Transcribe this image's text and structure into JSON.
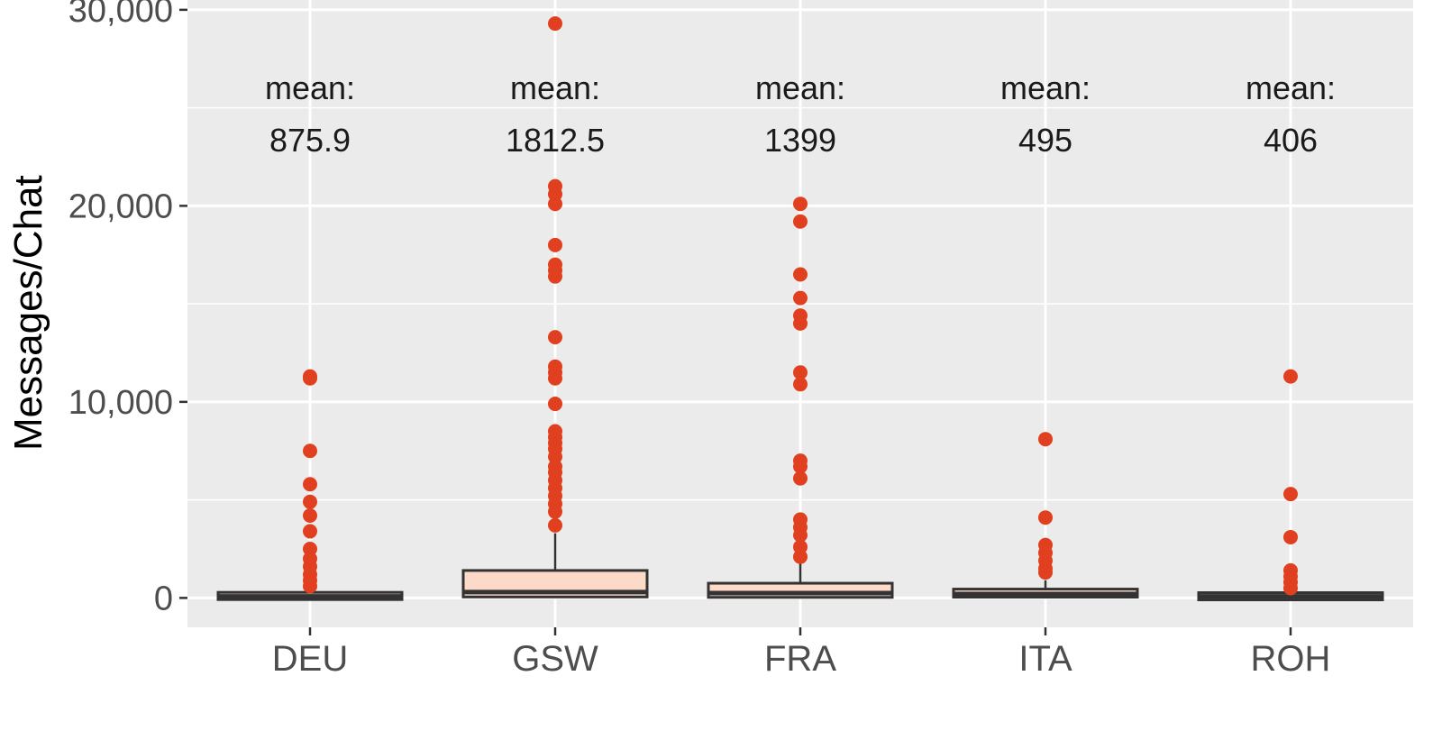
{
  "chart_data": {
    "type": "boxplot",
    "title": "",
    "xlabel": "",
    "ylabel": "Messages/Chat",
    "ylim": [
      -1500,
      30500
    ],
    "yticks": [
      0,
      10000,
      20000,
      30000
    ],
    "ytick_labels": [
      "0",
      "10,000",
      "20,000",
      "30,000"
    ],
    "grid": true,
    "legend": "none",
    "annotation_prefix": "mean:",
    "colors": {
      "panel": "#ebebeb",
      "grid": "#ffffff",
      "box_fill": "#fdd9c8",
      "box_edge": "#333333",
      "outlier": "#e0401f"
    },
    "categories": [
      "DEU",
      "GSW",
      "FRA",
      "ITA",
      "ROH"
    ],
    "groups": [
      {
        "category": "DEU",
        "mean_label": "875.9",
        "q1": 20,
        "median": 80,
        "q3": 180,
        "whisker_low": 0,
        "whisker_high": 400,
        "outliers": [
          11300,
          11200,
          7500,
          5800,
          4900,
          4200,
          3400,
          2500,
          2000,
          1600,
          1200,
          900,
          600
        ]
      },
      {
        "category": "GSW",
        "mean_label": "1812.5",
        "q1": 50,
        "median": 300,
        "q3": 1400,
        "whisker_low": 0,
        "whisker_high": 3300,
        "outliers": [
          29300,
          21000,
          20600,
          20100,
          18000,
          17000,
          16700,
          16400,
          13300,
          11800,
          11500,
          11200,
          9900,
          8500,
          8200,
          7900,
          7600,
          7200,
          6700,
          6400,
          6000,
          5600,
          5200,
          4800,
          4400,
          3700
        ]
      },
      {
        "category": "FRA",
        "mean_label": "1399",
        "q1": 30,
        "median": 250,
        "q3": 750,
        "whisker_low": 0,
        "whisker_high": 1800,
        "outliers": [
          20100,
          19200,
          16500,
          15300,
          14400,
          14000,
          11500,
          10900,
          7000,
          6700,
          6100,
          4000,
          3600,
          3200,
          2600,
          2100
        ]
      },
      {
        "category": "ITA",
        "mean_label": "495",
        "q1": 40,
        "median": 200,
        "q3": 450,
        "whisker_low": 0,
        "whisker_high": 900,
        "outliers": [
          8100,
          4100,
          2700,
          2300,
          1900,
          1500,
          1300
        ]
      },
      {
        "category": "ROH",
        "mean_label": "406",
        "q1": 20,
        "median": 80,
        "q3": 150,
        "whisker_low": 0,
        "whisker_high": 350,
        "outliers": [
          11300,
          5300,
          3100,
          1400,
          1100,
          800,
          500
        ]
      }
    ]
  }
}
